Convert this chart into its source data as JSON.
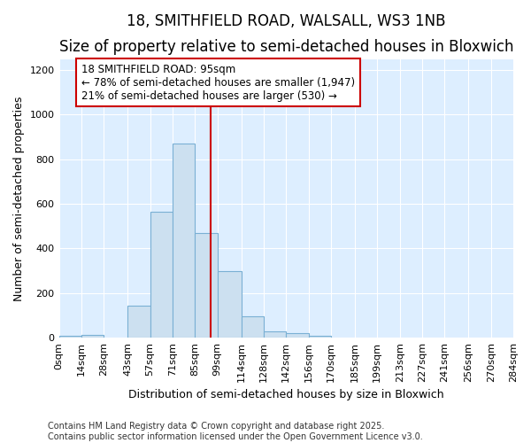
{
  "title1": "18, SMITHFIELD ROAD, WALSALL, WS3 1NB",
  "title2": "Size of property relative to semi-detached houses in Bloxwich",
  "xlabel": "Distribution of semi-detached houses by size in Bloxwich",
  "ylabel": "Number of semi-detached properties",
  "bin_edges": [
    0,
    14,
    28,
    43,
    57,
    71,
    85,
    99,
    114,
    128,
    142,
    156,
    170,
    185,
    199,
    213,
    227,
    241,
    256,
    270,
    284
  ],
  "bar_heights": [
    10,
    12,
    0,
    145,
    565,
    870,
    470,
    300,
    95,
    28,
    22,
    10,
    0,
    0,
    0,
    0,
    0,
    0,
    0,
    0
  ],
  "bar_color": "#cce0f0",
  "bar_edge_color": "#7ab0d4",
  "property_size": 95,
  "vline_color": "#cc0000",
  "annotation_line1": "18 SMITHFIELD ROAD: 95sqm",
  "annotation_line2": "← 78% of semi-detached houses are smaller (1,947)",
  "annotation_line3": "21% of semi-detached houses are larger (530) →",
  "annotation_box_facecolor": "#ffffff",
  "annotation_box_edgecolor": "#cc0000",
  "ylim": [
    0,
    1250
  ],
  "yticks": [
    0,
    200,
    400,
    600,
    800,
    1000,
    1200
  ],
  "tick_labels": [
    "0sqm",
    "14sqm",
    "28sqm",
    "43sqm",
    "57sqm",
    "71sqm",
    "85sqm",
    "99sqm",
    "114sqm",
    "128sqm",
    "142sqm",
    "156sqm",
    "170sqm",
    "185sqm",
    "199sqm",
    "213sqm",
    "227sqm",
    "241sqm",
    "256sqm",
    "270sqm",
    "284sqm"
  ],
  "plot_bg_color": "#ddeeff",
  "fig_bg_color": "#ffffff",
  "grid_color": "#ffffff",
  "footer_line1": "Contains HM Land Registry data © Crown copyright and database right 2025.",
  "footer_line2": "Contains public sector information licensed under the Open Government Licence v3.0.",
  "title1_fontsize": 12,
  "title2_fontsize": 10,
  "xlabel_fontsize": 9,
  "ylabel_fontsize": 9,
  "tick_fontsize": 8,
  "annotation_fontsize": 8.5,
  "footer_fontsize": 7
}
